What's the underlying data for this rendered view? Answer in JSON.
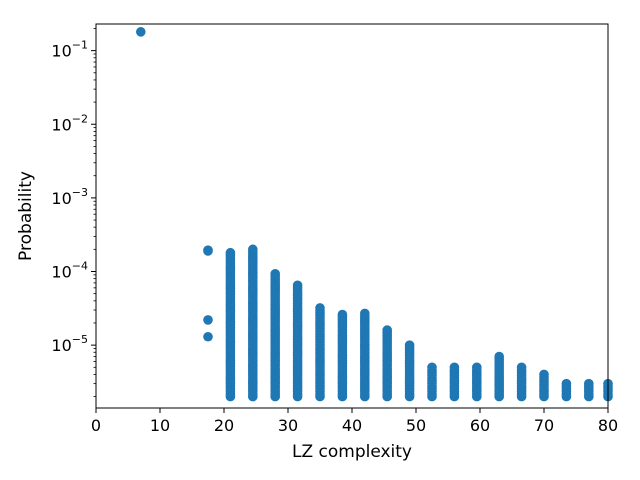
{
  "chart_data": {
    "type": "scatter",
    "title": "",
    "xlabel": "LZ complexity",
    "ylabel": "Probability",
    "xlim": [
      0,
      80
    ],
    "ylim": [
      1.4e-06,
      0.23
    ],
    "yscale": "log",
    "grid": false,
    "legend": "none",
    "color": "#1f77b4",
    "x_ticks": [
      0,
      10,
      20,
      30,
      40,
      50,
      60,
      70,
      80
    ],
    "y_ticks": [
      {
        "value": 1e-05,
        "base": "10",
        "exp": "−5"
      },
      {
        "value": 0.0001,
        "base": "10",
        "exp": "−4"
      },
      {
        "value": 0.001,
        "base": "10",
        "exp": "−3"
      },
      {
        "value": 0.01,
        "base": "10",
        "exp": "−2"
      },
      {
        "value": 0.1,
        "base": "10",
        "exp": "−1"
      }
    ],
    "series": [
      {
        "points": [
          {
            "x": 7,
            "y": 0.18
          },
          {
            "x": 17.5,
            "y": 0.00019
          },
          {
            "x": 17.5,
            "y": 0.000195
          },
          {
            "x": 17.5,
            "y": 2.2e-05
          },
          {
            "x": 17.5,
            "y": 1.3e-05
          }
        ],
        "columns": [
          {
            "x": 21,
            "ymin": 2e-06,
            "ymax": 0.00018
          },
          {
            "x": 24.5,
            "ymin": 2e-06,
            "ymax": 0.0002
          },
          {
            "x": 28,
            "ymin": 2e-06,
            "ymax": 9.3e-05
          },
          {
            "x": 31.5,
            "ymin": 2e-06,
            "ymax": 6.5e-05
          },
          {
            "x": 35,
            "ymin": 2e-06,
            "ymax": 3.2e-05
          },
          {
            "x": 38.5,
            "ymin": 2e-06,
            "ymax": 2.6e-05
          },
          {
            "x": 42,
            "ymin": 2e-06,
            "ymax": 2.7e-05
          },
          {
            "x": 45.5,
            "ymin": 2e-06,
            "ymax": 1.6e-05
          },
          {
            "x": 49,
            "ymin": 2e-06,
            "ymax": 1e-05
          },
          {
            "x": 52.5,
            "ymin": 2e-06,
            "ymax": 5e-06
          },
          {
            "x": 56,
            "ymin": 2e-06,
            "ymax": 5e-06
          },
          {
            "x": 59.5,
            "ymin": 2e-06,
            "ymax": 5e-06
          },
          {
            "x": 63,
            "ymin": 2e-06,
            "ymax": 7e-06
          },
          {
            "x": 66.5,
            "ymin": 2e-06,
            "ymax": 5e-06
          },
          {
            "x": 70,
            "ymin": 2e-06,
            "ymax": 4e-06
          },
          {
            "x": 73.5,
            "ymin": 2e-06,
            "ymax": 3e-06
          },
          {
            "x": 77,
            "ymin": 2e-06,
            "ymax": 3e-06
          },
          {
            "x": 80,
            "ymin": 2e-06,
            "ymax": 3e-06
          }
        ]
      }
    ]
  }
}
